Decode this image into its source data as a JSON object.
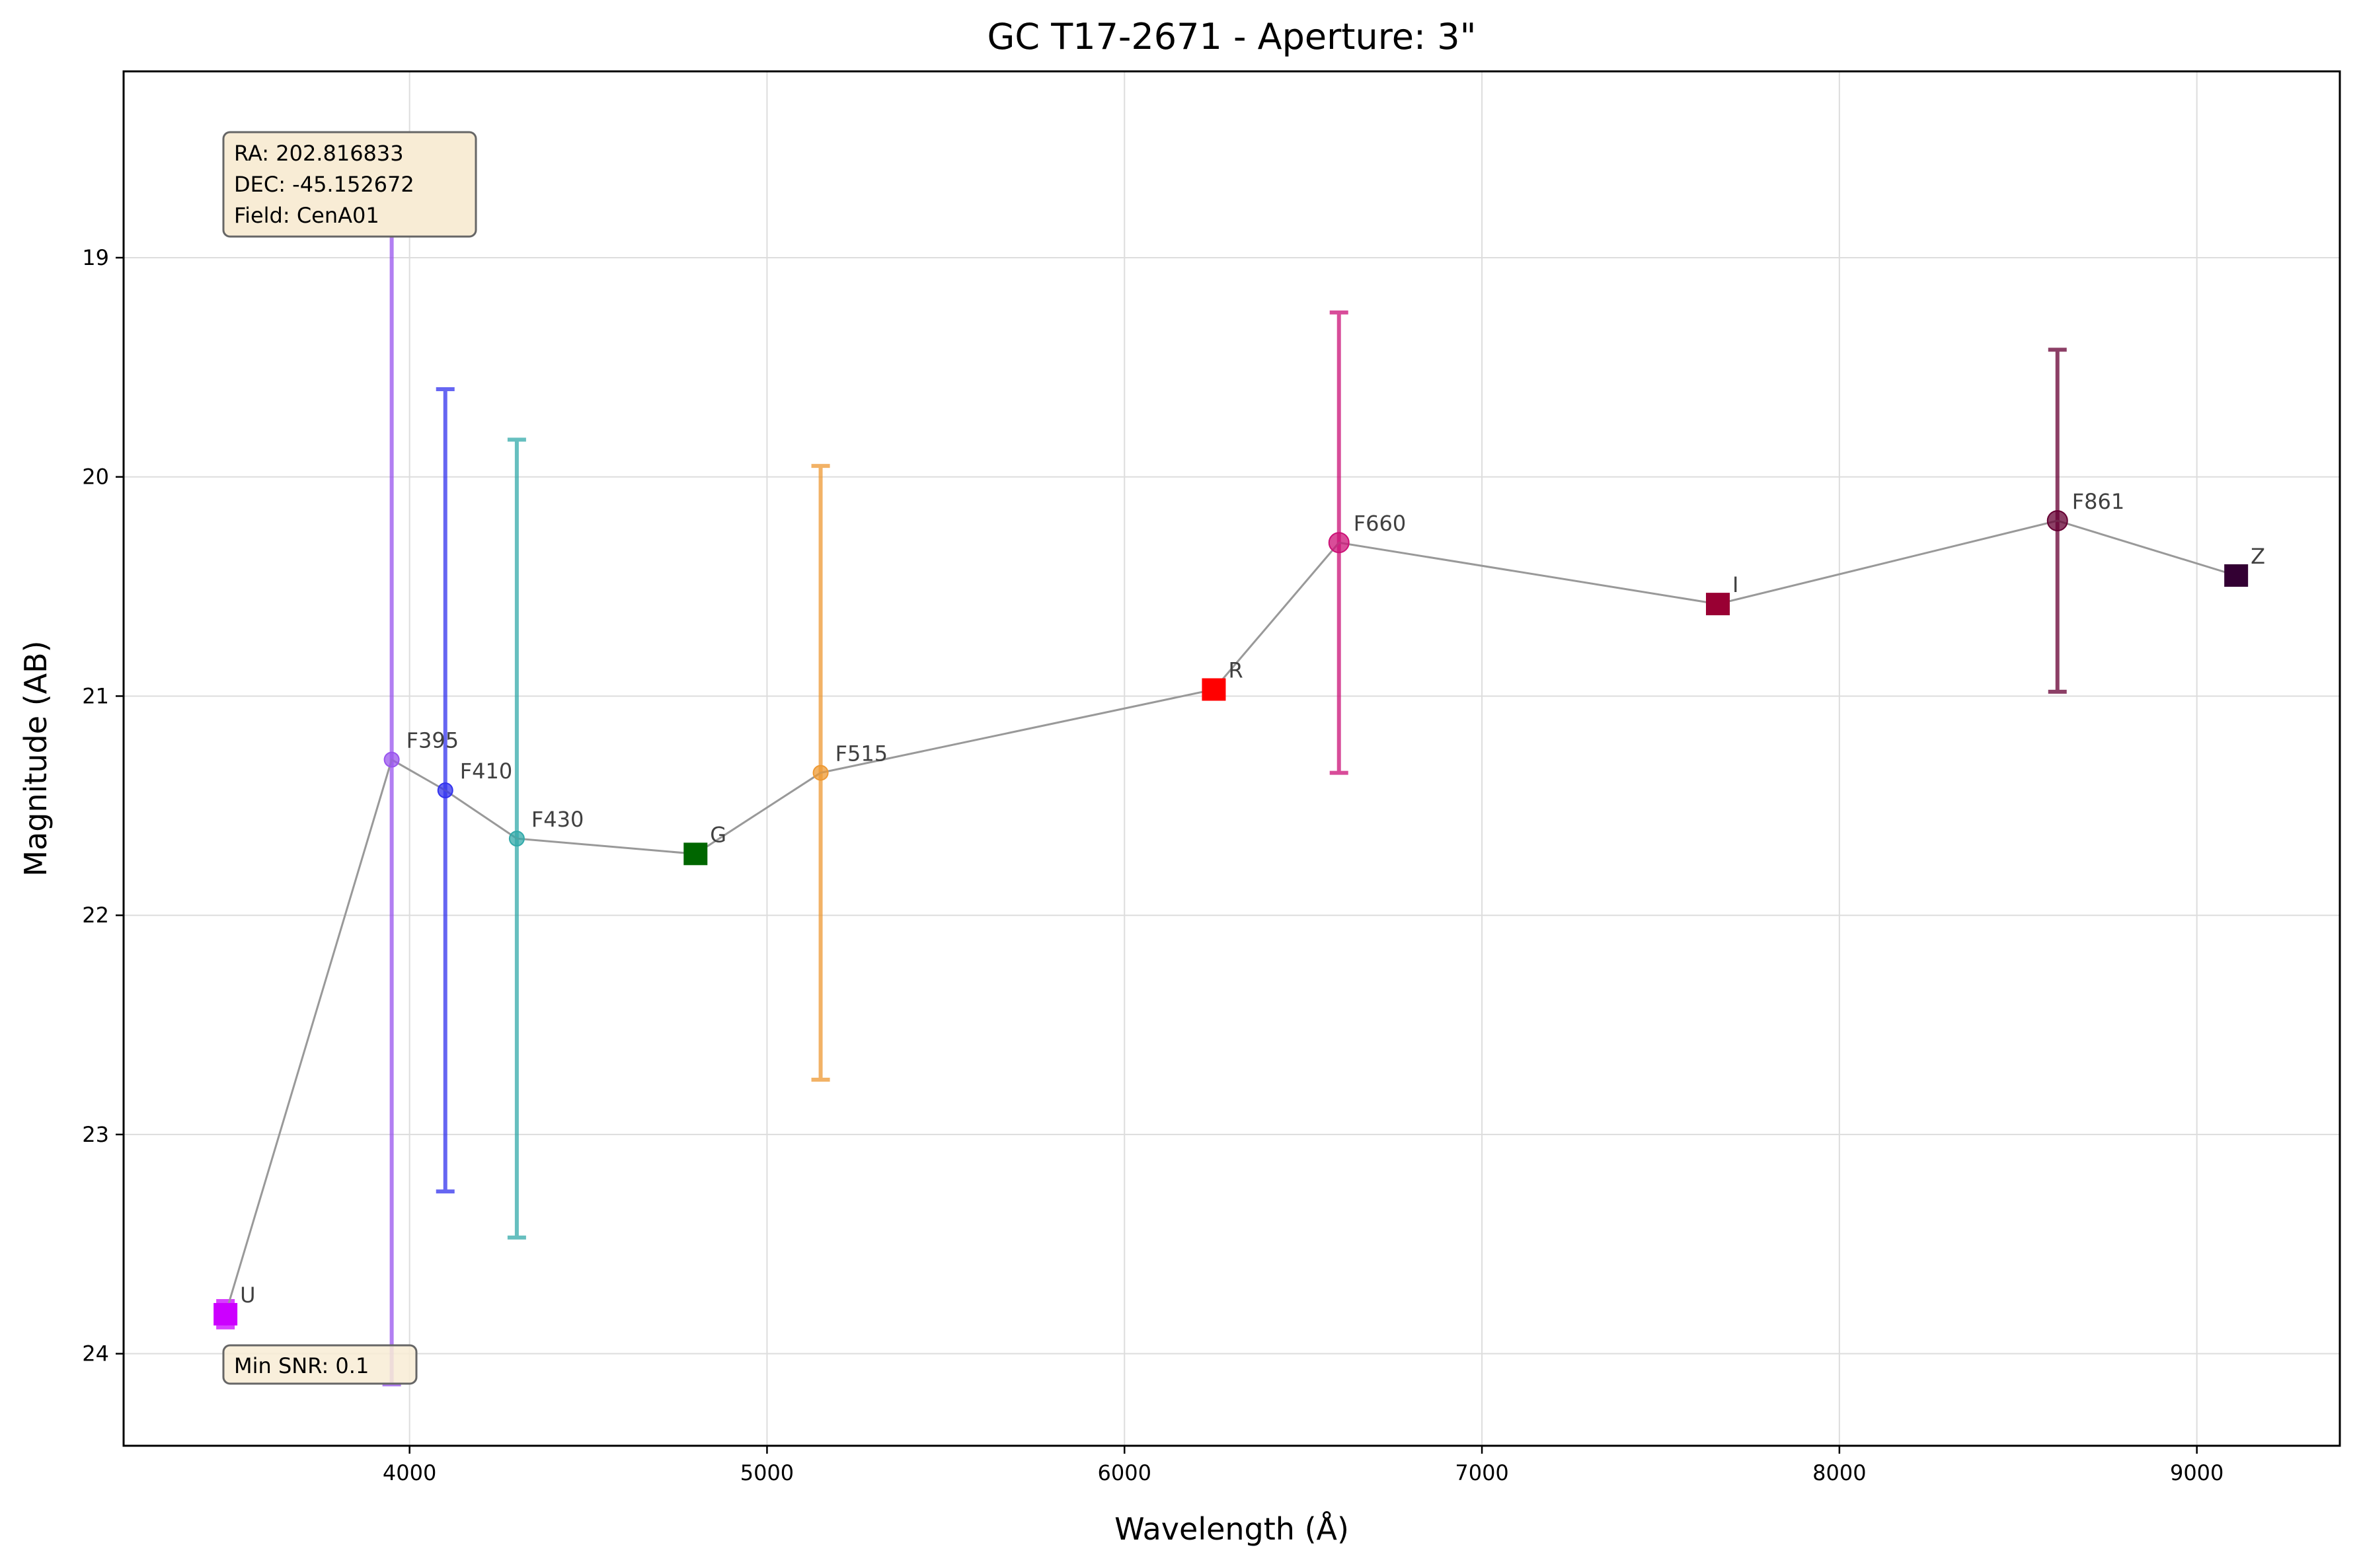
{
  "chart_data": {
    "type": "scatter",
    "title": "GC T17-2671 - Aperture: 3\"",
    "xlabel": "Wavelength (Å)",
    "ylabel": "Magnitude (AB)",
    "xlim": [
      3200,
      9400
    ],
    "ylim": [
      24.42,
      18.15
    ],
    "y_inverted": true,
    "grid": true,
    "x_ticks": [
      4000,
      5000,
      6000,
      7000,
      8000,
      9000
    ],
    "y_ticks": [
      19,
      20,
      21,
      22,
      23,
      24
    ],
    "info_box": [
      "RA: 202.816833",
      "DEC: -45.152672",
      "Field: CenA01"
    ],
    "snr_box": "Min SNR: 0.1",
    "connecting_line_color": "#999999",
    "points": [
      {
        "label": "U",
        "x": 3485,
        "y": 23.82,
        "err": 0.06,
        "marker": "square",
        "color": "#cc00ff"
      },
      {
        "label": "F395",
        "x": 3950,
        "y": 21.29,
        "err": 2.85,
        "marker": "circle",
        "color": "#9955ee"
      },
      {
        "label": "F410",
        "x": 4100,
        "y": 21.43,
        "err": 1.83,
        "marker": "circle",
        "color": "#3333ee"
      },
      {
        "label": "F430",
        "x": 4300,
        "y": 21.65,
        "err": 1.82,
        "marker": "circle",
        "color": "#33aaaa"
      },
      {
        "label": "G",
        "x": 4800,
        "y": 21.72,
        "err": 0,
        "marker": "square",
        "color": "#006600"
      },
      {
        "label": "F515",
        "x": 5150,
        "y": 21.35,
        "err": 1.4,
        "marker": "circle",
        "color": "#ee9933"
      },
      {
        "label": "R",
        "x": 6250,
        "y": 20.97,
        "err": 0,
        "marker": "square",
        "color": "#ff0000"
      },
      {
        "label": "F660",
        "x": 6600,
        "y": 20.3,
        "err": 1.05,
        "marker": "circle",
        "color": "#cc1177"
      },
      {
        "label": "I",
        "x": 7660,
        "y": 20.58,
        "err": 0,
        "marker": "square",
        "color": "#990033"
      },
      {
        "label": "F861",
        "x": 8610,
        "y": 20.2,
        "err": 0.78,
        "marker": "circle",
        "color": "#660033"
      },
      {
        "label": "Z",
        "x": 9110,
        "y": 20.45,
        "err": 0,
        "marker": "square",
        "color": "#330033"
      }
    ]
  }
}
